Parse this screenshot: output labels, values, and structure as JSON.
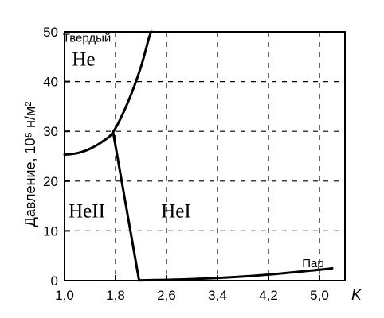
{
  "chart_data": {
    "type": "line",
    "ylabel": "Давление, 10⁵ н/м²",
    "x_unit": "K",
    "xlim": [
      1.0,
      5.4
    ],
    "ylim": [
      0,
      50
    ],
    "x_ticks": [
      "1,0",
      "1,8",
      "2,6",
      "3,4",
      "4,2",
      "5,0"
    ],
    "y_ticks": [
      "0",
      "10",
      "20",
      "30",
      "40",
      "50"
    ],
    "grid": true,
    "series": [
      {
        "id": "melting-curve",
        "points": [
          [
            1.0,
            25.3
          ],
          [
            1.2,
            25.6
          ],
          [
            1.4,
            26.5
          ],
          [
            1.6,
            28.0
          ],
          [
            1.77,
            30.0
          ],
          [
            2.0,
            36.0
          ],
          [
            2.2,
            43.0
          ],
          [
            2.33,
            49.0
          ],
          [
            2.37,
            50.0
          ]
        ]
      },
      {
        "id": "lambda-line",
        "points": [
          [
            1.76,
            30.0
          ],
          [
            2.17,
            0.05
          ]
        ]
      },
      {
        "id": "vapor-curve",
        "points": [
          [
            2.17,
            0.05
          ],
          [
            3.0,
            0.3
          ],
          [
            4.0,
            1.0
          ],
          [
            5.0,
            2.2
          ],
          [
            5.2,
            2.5
          ]
        ]
      }
    ],
    "region_labels": [
      {
        "lines": [
          "Твердый",
          "He"
        ],
        "x": 1.35,
        "y": 44.5
      },
      {
        "lines": [
          "HeII"
        ],
        "x": 1.35,
        "y": 14.0
      },
      {
        "lines": [
          "HeI"
        ],
        "x": 2.75,
        "y": 14.0
      },
      {
        "lines": [
          "Пар"
        ],
        "x": 4.9,
        "y": 4.0
      }
    ]
  }
}
